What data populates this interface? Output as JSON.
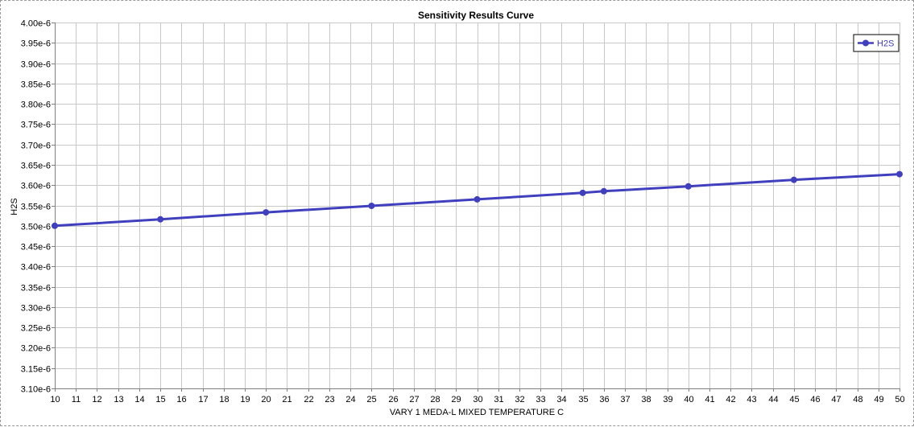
{
  "chart_data": {
    "type": "line",
    "title": "Sensitivity Results Curve",
    "xlabel": "VARY   1 MEDA-L MIXED TEMPERATURE C",
    "ylabel": "H2S",
    "xlim": [
      10,
      50
    ],
    "ylim": [
      3.1e-06,
      4e-06
    ],
    "xticks": [
      10,
      11,
      12,
      13,
      14,
      15,
      16,
      17,
      18,
      19,
      20,
      21,
      22,
      23,
      24,
      25,
      26,
      27,
      28,
      29,
      30,
      31,
      32,
      33,
      34,
      35,
      36,
      37,
      38,
      39,
      40,
      41,
      42,
      43,
      44,
      45,
      46,
      47,
      48,
      49,
      50
    ],
    "yticks": [
      {
        "value": 3.1e-06,
        "label": "3.10e-6"
      },
      {
        "value": 3.15e-06,
        "label": "3.15e-6"
      },
      {
        "value": 3.2e-06,
        "label": "3.20e-6"
      },
      {
        "value": 3.25e-06,
        "label": "3.25e-6"
      },
      {
        "value": 3.3e-06,
        "label": "3.30e-6"
      },
      {
        "value": 3.35e-06,
        "label": "3.35e-6"
      },
      {
        "value": 3.4e-06,
        "label": "3.40e-6"
      },
      {
        "value": 3.45e-06,
        "label": "3.45e-6"
      },
      {
        "value": 3.5e-06,
        "label": "3.50e-6"
      },
      {
        "value": 3.55e-06,
        "label": "3.55e-6"
      },
      {
        "value": 3.6e-06,
        "label": "3.60e-6"
      },
      {
        "value": 3.65e-06,
        "label": "3.65e-6"
      },
      {
        "value": 3.7e-06,
        "label": "3.70e-6"
      },
      {
        "value": 3.75e-06,
        "label": "3.75e-6"
      },
      {
        "value": 3.8e-06,
        "label": "3.80e-6"
      },
      {
        "value": 3.85e-06,
        "label": "3.85e-6"
      },
      {
        "value": 3.9e-06,
        "label": "3.90e-6"
      },
      {
        "value": 3.95e-06,
        "label": "3.95e-6"
      },
      {
        "value": 4e-06,
        "label": "4.00e-6"
      }
    ],
    "grid": true,
    "legend_position": "top-right",
    "series": [
      {
        "name": "H2S",
        "color": "#4040bf",
        "x": [
          10,
          15,
          20,
          25,
          30,
          35,
          36,
          40,
          45,
          50
        ],
        "y": [
          3.5e-06,
          3.516e-06,
          3.533e-06,
          3.549e-06,
          3.565e-06,
          3.581e-06,
          3.585e-06,
          3.597e-06,
          3.613e-06,
          3.627e-06
        ]
      }
    ]
  },
  "colors": {
    "grid": "#c8c8c8",
    "axis": "#808080",
    "series": "#4040bf",
    "frame": "#9a9a9a"
  }
}
